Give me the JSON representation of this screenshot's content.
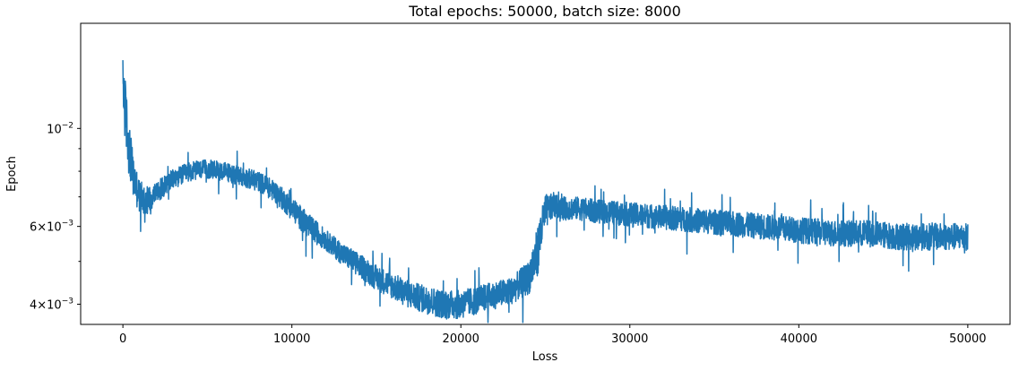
{
  "chart_data": {
    "type": "line",
    "title": "Total epochs: 50000, batch size: 8000",
    "xlabel": "Loss",
    "ylabel": "Epoch",
    "xlim": [
      -2500,
      52500
    ],
    "ylim": [
      0.0036,
      0.0173
    ],
    "yscale": "log",
    "grid": false,
    "legend": "none",
    "x_ticks": [
      {
        "value": 0,
        "label": "0"
      },
      {
        "value": 10000,
        "label": "10000"
      },
      {
        "value": 20000,
        "label": "20000"
      },
      {
        "value": 30000,
        "label": "30000"
      },
      {
        "value": 40000,
        "label": "40000"
      },
      {
        "value": 50000,
        "label": "50000"
      }
    ],
    "y_ticks": [
      {
        "value": 0.01,
        "base": "10",
        "exp": "−2",
        "type": "pow"
      },
      {
        "value": 0.006,
        "mant": "6",
        "base": "10",
        "exp": "−3",
        "type": "sci"
      },
      {
        "value": 0.004,
        "mant": "4",
        "base": "10",
        "exp": "−3",
        "type": "sci"
      }
    ],
    "y_minor_ticks": [
      0.005,
      0.007,
      0.008,
      0.009
    ],
    "series": [
      {
        "color": "#1f77b4",
        "x": [
          0,
          100,
          300,
          600,
          1000,
          1500,
          2000,
          3000,
          4000,
          5000,
          6000,
          7000,
          8000,
          9000,
          10000,
          11000,
          12000,
          13000,
          14000,
          15000,
          16000,
          17000,
          18000,
          19000,
          20000,
          21000,
          22000,
          23000,
          24000,
          24500,
          25000,
          25500,
          26000,
          27000,
          28000,
          30000,
          32000,
          34000,
          36000,
          38000,
          40000,
          42000,
          44000,
          46000,
          48000,
          50000
        ],
        "y_mid": [
          0.0125,
          0.0115,
          0.0095,
          0.0078,
          0.007,
          0.0069,
          0.0072,
          0.0077,
          0.008,
          0.0081,
          0.008,
          0.0078,
          0.0076,
          0.0072,
          0.0066,
          0.006,
          0.0056,
          0.0052,
          0.0049,
          0.0046,
          0.0044,
          0.0042,
          0.0041,
          0.004,
          0.004,
          0.0041,
          0.0042,
          0.0043,
          0.0046,
          0.0052,
          0.0065,
          0.0067,
          0.0066,
          0.0066,
          0.0065,
          0.0064,
          0.0063,
          0.0062,
          0.0061,
          0.006,
          0.0059,
          0.0058,
          0.0058,
          0.0057,
          0.0057,
          0.0057
        ],
        "y_spread": [
          0.002,
          0.002,
          0.0014,
          0.0009,
          0.0006,
          0.0005,
          0.0004,
          0.0004,
          0.0004,
          0.0004,
          0.0004,
          0.0004,
          0.0004,
          0.0004,
          0.0004,
          0.0004,
          0.0003,
          0.0003,
          0.0003,
          0.0003,
          0.0003,
          0.0003,
          0.0003,
          0.0003,
          0.0003,
          0.0003,
          0.0003,
          0.0003,
          0.0004,
          0.0007,
          0.0006,
          0.0004,
          0.0004,
          0.0004,
          0.0004,
          0.0004,
          0.0004,
          0.0004,
          0.0004,
          0.0004,
          0.0004,
          0.0004,
          0.0004,
          0.0004,
          0.0004,
          0.0004
        ]
      }
    ]
  }
}
